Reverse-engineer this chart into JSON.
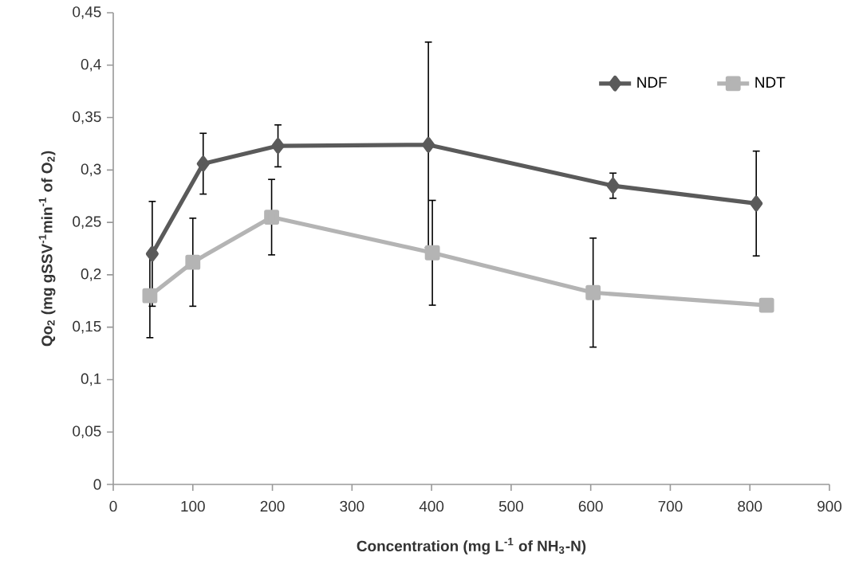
{
  "chart_data": {
    "type": "line",
    "xlabel": "Concentration (mg L$^{-1}$ of NH$_{3}$-N)",
    "ylabel": "Qo$_{2}$ (mg gSSV$^{-1}$min$^{-1}$ of O$_{2}$)",
    "xlim": [
      0,
      900
    ],
    "xticks": [
      0,
      100,
      200,
      300,
      400,
      500,
      600,
      700,
      800,
      900
    ],
    "ylim": [
      0,
      0.45
    ],
    "yticks": [
      0,
      {
        "value": 0.05,
        "label": "0,05"
      },
      {
        "value": 0.1,
        "label": "0,1"
      },
      {
        "value": 0.15,
        "label": "0,15"
      },
      {
        "value": 0.2,
        "label": "0,2"
      },
      {
        "value": 0.25,
        "label": "0,25"
      },
      {
        "value": 0.3,
        "label": "0,3"
      },
      {
        "value": 0.35,
        "label": "0,35"
      },
      {
        "value": 0.4,
        "label": "0,4"
      },
      {
        "value": 0.45,
        "label": "0,45"
      }
    ],
    "grid": false,
    "legend": "top right",
    "line_style": "solid",
    "series": [
      {
        "name": "NDF",
        "color": "#5a5a5a",
        "marker": "diamond",
        "x": [
          49,
          113,
          207,
          396,
          628,
          808
        ],
        "values": [
          0.22,
          0.306,
          0.323,
          0.324,
          0.285,
          0.268
        ],
        "errors": [
          0.05,
          0.029,
          0.02,
          0.098,
          0.012,
          0.05
        ]
      },
      {
        "name": "NDT",
        "color": "#b4b4b4",
        "marker": "square",
        "x": [
          46,
          100,
          199,
          401,
          603,
          821
        ],
        "values": [
          0.18,
          0.212,
          0.255,
          0.221,
          0.183,
          0.171
        ],
        "errors": [
          0.04,
          0.042,
          0.036,
          0.05,
          0.052,
          null
        ]
      }
    ]
  }
}
